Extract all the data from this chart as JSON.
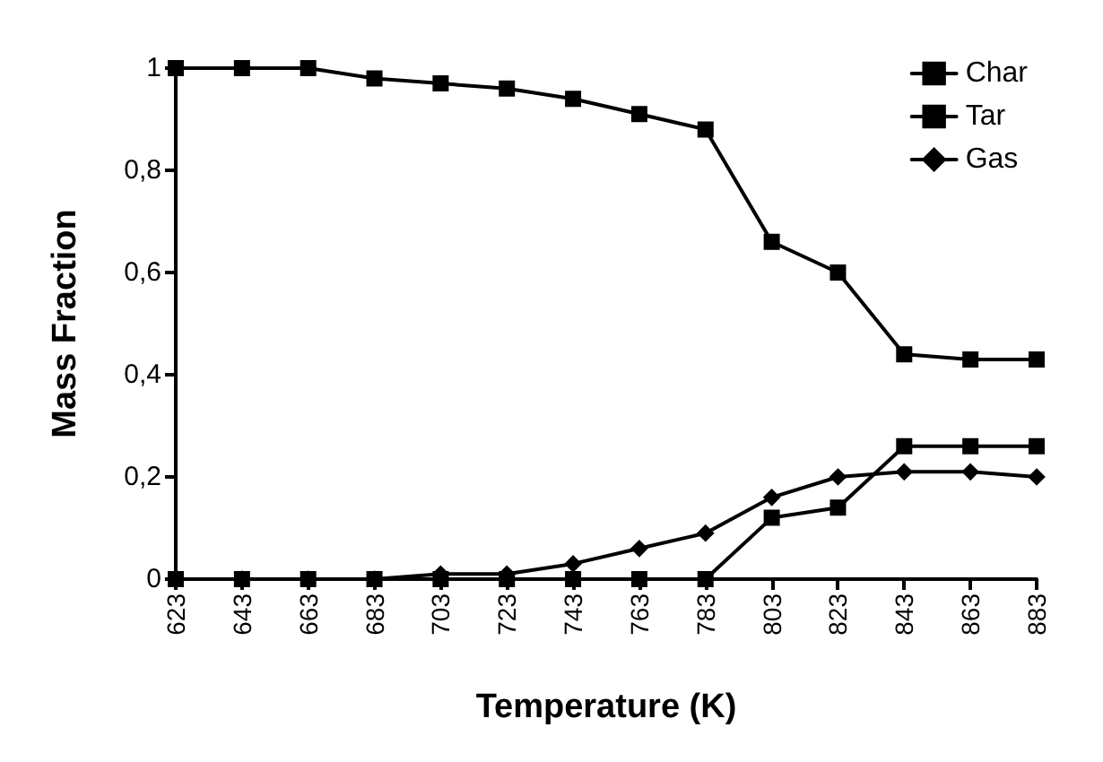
{
  "chart_data": {
    "type": "line",
    "xlabel": "Temperature (K)",
    "ylabel": "Mass Fraction",
    "categories": [
      "623",
      "643",
      "663",
      "683",
      "703",
      "723",
      "743",
      "763",
      "783",
      "803",
      "823",
      "843",
      "863",
      "883"
    ],
    "series": [
      {
        "name": "Char",
        "color": "#000000",
        "marker": "square",
        "values": [
          1,
          1,
          1,
          0.98,
          0.97,
          0.96,
          0.94,
          0.91,
          0.88,
          0.66,
          0.6,
          0.44,
          0.43,
          0.43
        ]
      },
      {
        "name": "Tar",
        "color": "#000000",
        "marker": "square",
        "values": [
          0,
          0,
          0,
          0,
          0,
          0,
          0,
          0,
          0,
          0.12,
          0.14,
          0.26,
          0.26,
          0.26
        ]
      },
      {
        "name": "Gas",
        "color": "#000000",
        "marker": "diamond",
        "values": [
          0,
          0,
          0,
          0,
          0.01,
          0.01,
          0.03,
          0.06,
          0.09,
          0.16,
          0.2,
          0.21,
          0.21,
          0.2
        ]
      }
    ],
    "ylim": [
      0,
      1
    ],
    "yticks": [
      0,
      {
        "value": 0.2,
        "label": "0,2"
      },
      {
        "value": 0.4,
        "label": "0,4"
      },
      {
        "value": 0.6,
        "label": "0,6"
      },
      {
        "value": 0.8,
        "label": "0,8"
      },
      1
    ],
    "grid": false,
    "legend": "top right",
    "line_style": "solid"
  }
}
